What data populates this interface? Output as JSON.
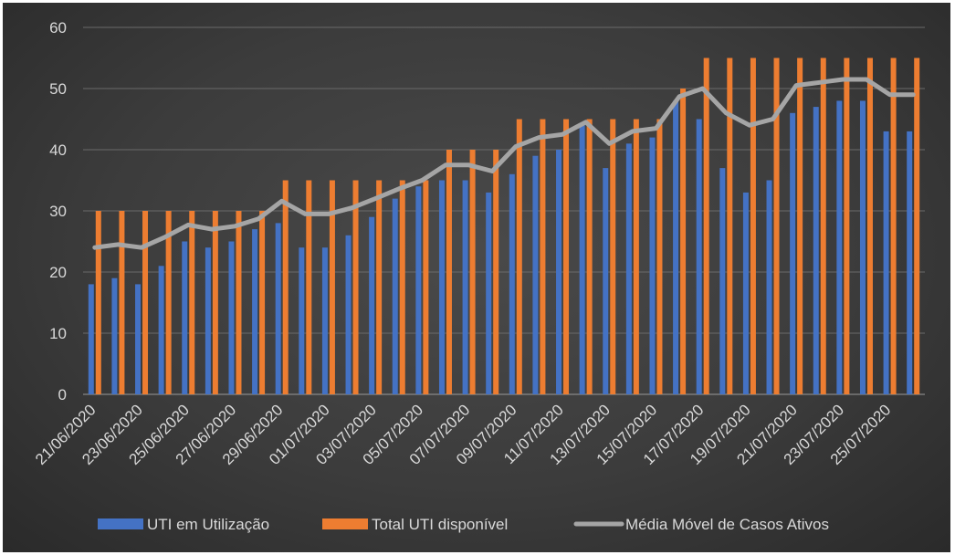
{
  "chart_data": {
    "type": "bar",
    "title": "",
    "xlabel": "",
    "ylabel": "",
    "ylim": [
      0,
      60
    ],
    "yticks": [
      0,
      10,
      20,
      30,
      40,
      50,
      60
    ],
    "grid": true,
    "legend_position": "bottom",
    "categories": [
      "21/06/2020",
      "22/06/2020",
      "23/06/2020",
      "24/06/2020",
      "25/06/2020",
      "26/06/2020",
      "27/06/2020",
      "28/06/2020",
      "29/06/2020",
      "30/06/2020",
      "01/07/2020",
      "02/07/2020",
      "03/07/2020",
      "04/07/2020",
      "05/07/2020",
      "06/07/2020",
      "07/07/2020",
      "08/07/2020",
      "09/07/2020",
      "10/07/2020",
      "11/07/2020",
      "12/07/2020",
      "13/07/2020",
      "14/07/2020",
      "15/07/2020",
      "16/07/2020",
      "17/07/2020",
      "18/07/2020",
      "19/07/2020",
      "20/07/2020",
      "21/07/2020",
      "22/07/2020",
      "23/07/2020",
      "24/07/2020",
      "25/07/2020",
      "26/07/2020"
    ],
    "x_tick_labels": [
      "21/06/2020",
      "23/06/2020",
      "25/06/2020",
      "27/06/2020",
      "29/06/2020",
      "01/07/2020",
      "03/07/2020",
      "05/07/2020",
      "07/07/2020",
      "09/07/2020",
      "11/07/2020",
      "13/07/2020",
      "15/07/2020",
      "17/07/2020",
      "19/07/2020",
      "21/07/2020",
      "23/07/2020",
      "25/07/2020"
    ],
    "series": [
      {
        "name": "UTI em Utilização",
        "type": "bar",
        "color": "#4472c4",
        "values": [
          18,
          19,
          18,
          21,
          25,
          24,
          25,
          27,
          28,
          24,
          24,
          26,
          29,
          32,
          34,
          35,
          35,
          33,
          36,
          39,
          40,
          44,
          37,
          41,
          42,
          48,
          45,
          37,
          33,
          35,
          46,
          47,
          48,
          48,
          43,
          43
        ]
      },
      {
        "name": "Total UTI disponível",
        "type": "bar",
        "color": "#ed7d31",
        "values": [
          30,
          30,
          30,
          30,
          30,
          30,
          30,
          30,
          35,
          35,
          35,
          35,
          35,
          35,
          35,
          40,
          40,
          40,
          45,
          45,
          45,
          45,
          45,
          45,
          45,
          50,
          55,
          55,
          55,
          55,
          55,
          55,
          55,
          55,
          55,
          55
        ]
      },
      {
        "name": "Média Móvel de Casos Ativos",
        "type": "line",
        "color": "#a5a5a5",
        "values": [
          24,
          24.5,
          24,
          25.7,
          27.7,
          27,
          27.5,
          28.7,
          31.6,
          29.5,
          29.5,
          30.5,
          32,
          33.6,
          35,
          37.5,
          37.5,
          36.5,
          40.5,
          42,
          42.5,
          44.5,
          41,
          43,
          43.5,
          48.7,
          50,
          46,
          44,
          45,
          50.5,
          51,
          51.5,
          51.5,
          49,
          49
        ]
      }
    ]
  }
}
